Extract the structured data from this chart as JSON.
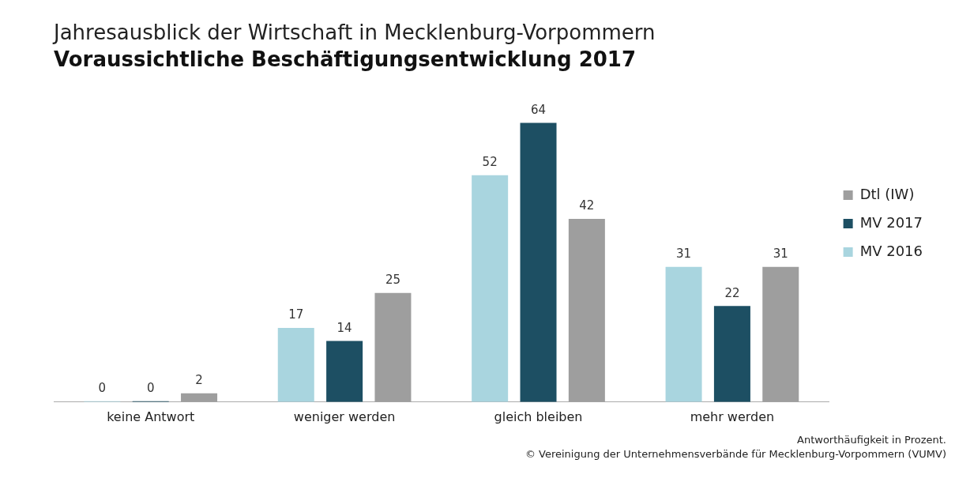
{
  "chart_data": {
    "type": "bar",
    "title": "Jahresausblick der Wirtschaft in Mecklenburg-Vorpommern",
    "subtitle": "Voraussichtliche Beschäftigungsentwicklung 2017",
    "categories": [
      "keine Antwort",
      "weniger werden",
      "gleich bleiben",
      "mehr werden"
    ],
    "series": [
      {
        "name": "MV 2016",
        "color": "#a9d5df",
        "values": [
          0,
          17,
          52,
          31
        ]
      },
      {
        "name": "MV 2017",
        "color": "#1d4f63",
        "values": [
          0,
          14,
          64,
          22
        ]
      },
      {
        "name": "Dtl (IW)",
        "color": "#9e9e9e",
        "values": [
          2,
          25,
          42,
          31
        ]
      }
    ],
    "data_labels": true,
    "legend": "right",
    "grid": false,
    "annotations": [
      "Antworthäufigkeit in Prozent.",
      "© Vereinigung der Unternehmensverbände für Mecklenburg-Vorpommern (VUMV)"
    ]
  }
}
